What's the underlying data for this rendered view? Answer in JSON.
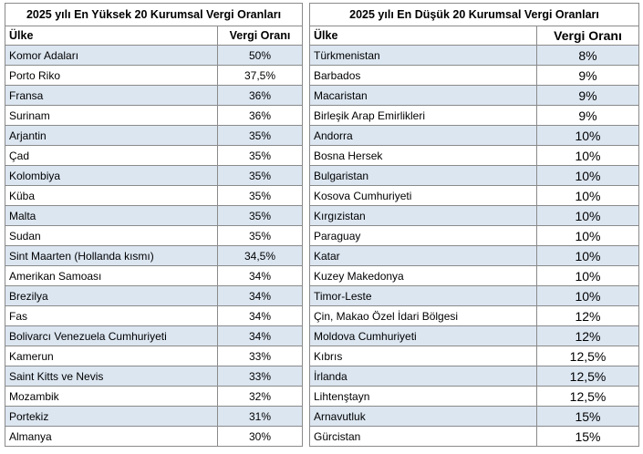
{
  "tables": [
    {
      "title": "2025 yılı En Yüksek 20 Kurumsal Vergi Oranları",
      "headers": [
        "Ülke",
        "Vergi Oranı"
      ],
      "rows": [
        [
          "Komor Adaları",
          "50%"
        ],
        [
          "Porto Riko",
          "37,5%"
        ],
        [
          "Fransa",
          "36%"
        ],
        [
          "Surinam",
          "36%"
        ],
        [
          "Arjantin",
          "35%"
        ],
        [
          "Çad",
          "35%"
        ],
        [
          "Kolombiya",
          "35%"
        ],
        [
          "Küba",
          "35%"
        ],
        [
          "Malta",
          "35%"
        ],
        [
          "Sudan",
          "35%"
        ],
        [
          "Sint Maarten (Hollanda kısmı)",
          "34,5%"
        ],
        [
          "Amerikan Samoası",
          "34%"
        ],
        [
          "Brezilya",
          "34%"
        ],
        [
          "Fas",
          "34%"
        ],
        [
          "Bolivarcı Venezuela Cumhuriyeti",
          "34%"
        ],
        [
          "Kamerun",
          "33%"
        ],
        [
          "Saint Kitts ve Nevis",
          "33%"
        ],
        [
          "Mozambik",
          "32%"
        ],
        [
          "Portekiz",
          "31%"
        ],
        [
          "Almanya",
          "30%"
        ]
      ]
    },
    {
      "title": "2025 yılı En Düşük 20 Kurumsal Vergi Oranları",
      "headers": [
        "Ülke",
        "Vergi Oranı"
      ],
      "rows": [
        [
          "Türkmenistan",
          "8%"
        ],
        [
          "Barbados",
          "9%"
        ],
        [
          "Macaristan",
          "9%"
        ],
        [
          "Birleşik Arap Emirlikleri",
          "9%"
        ],
        [
          "Andorra",
          "10%"
        ],
        [
          "Bosna Hersek",
          "10%"
        ],
        [
          "Bulgaristan",
          "10%"
        ],
        [
          "Kosova Cumhuriyeti",
          "10%"
        ],
        [
          "Kırgızistan",
          "10%"
        ],
        [
          "Paraguay",
          "10%"
        ],
        [
          "Katar",
          "10%"
        ],
        [
          "Kuzey Makedonya",
          "10%"
        ],
        [
          "Timor-Leste",
          "10%"
        ],
        [
          "Çin, Makao Özel İdari Bölgesi",
          "12%"
        ],
        [
          "Moldova Cumhuriyeti",
          "12%"
        ],
        [
          "Kıbrıs",
          "12,5%"
        ],
        [
          "İrlanda",
          "12,5%"
        ],
        [
          "Lihtenştayn",
          "12,5%"
        ],
        [
          "Arnavutluk",
          "15%"
        ],
        [
          "Gürcistan",
          "15%"
        ]
      ]
    }
  ]
}
